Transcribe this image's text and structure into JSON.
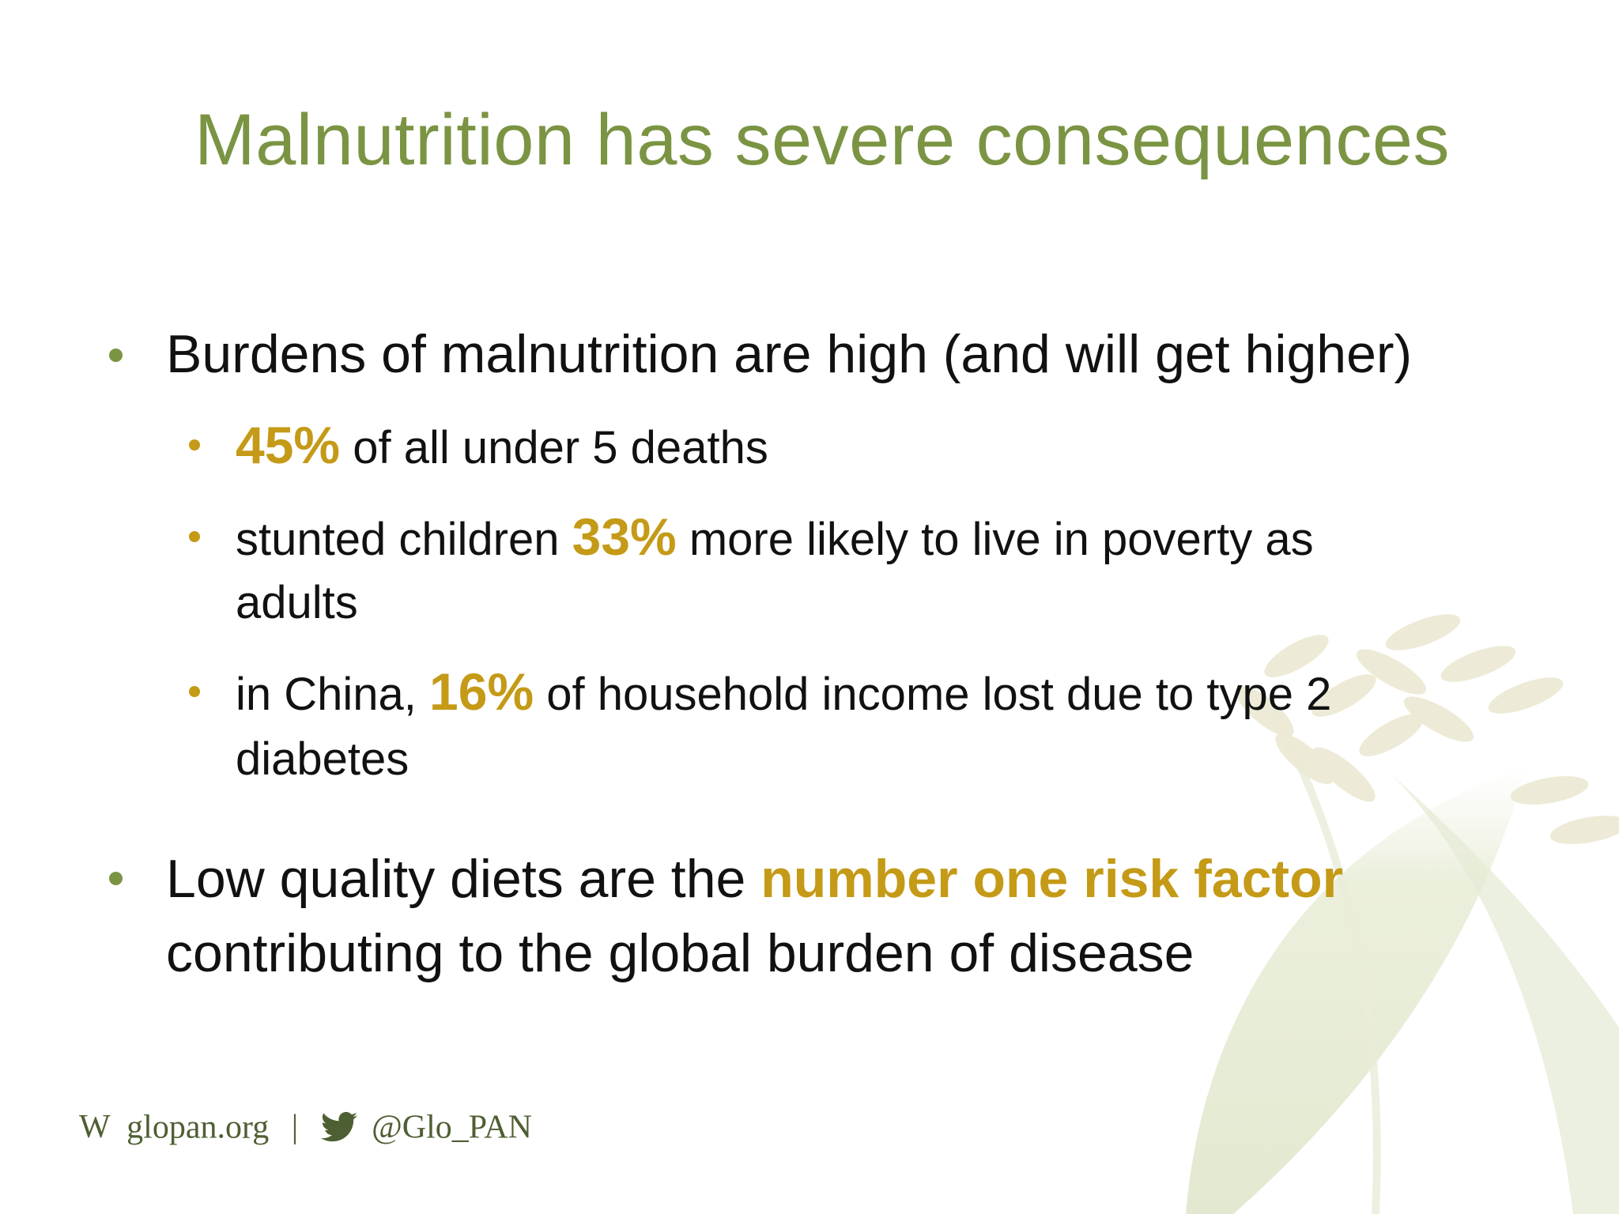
{
  "slide": {
    "title": "Malnutrition has severe consequences",
    "bullets": [
      {
        "text": "Burdens of malnutrition are high (and will get higher)",
        "sub": [
          {
            "highlight": "45%",
            "after": " of all under 5 deaths"
          },
          {
            "before": "stunted children ",
            "highlight": "33%",
            "after_line1": " more likely to live in poverty as",
            "line2": "adults"
          },
          {
            "before": "in China, ",
            "highlight": "16%",
            "after_line1": " of household income lost due to type 2",
            "line2": "diabetes"
          }
        ]
      },
      {
        "before": "Low quality diets are the ",
        "highlight": "number one risk factor",
        "line2": "contributing to the global burden of disease"
      }
    ]
  },
  "footer": {
    "web_letter": "W",
    "website": "glopan.org",
    "separator": "|",
    "twitter_icon": "twitter-bird-icon",
    "handle": "@Glo_PAN"
  },
  "colors": {
    "title_green": "#7b9443",
    "highlight_gold": "#c49a17",
    "text": "#111111",
    "leaf_tint": "#e6ebd5"
  }
}
